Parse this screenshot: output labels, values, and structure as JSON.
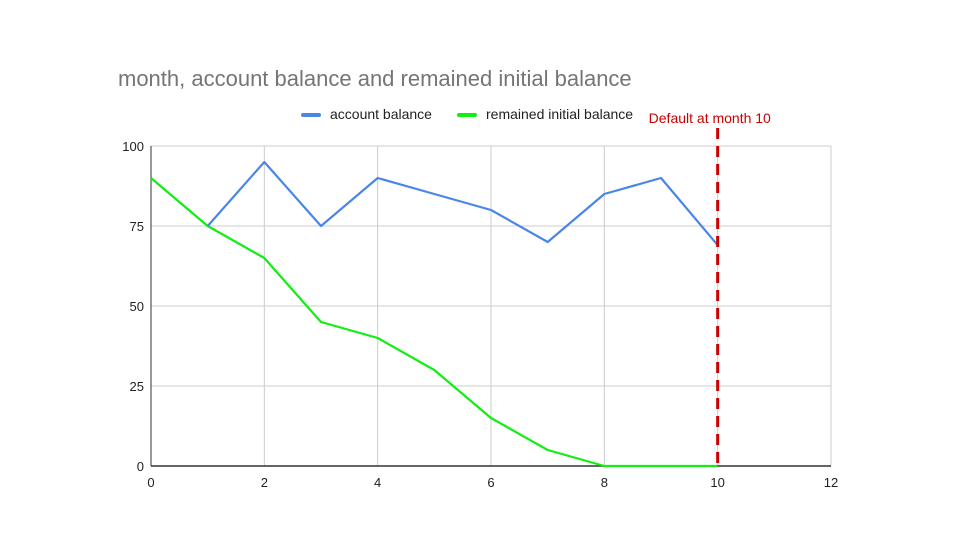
{
  "chart_data": {
    "type": "line",
    "title": "month, account balance and remained initial balance",
    "xlabel": "",
    "ylabel": "",
    "xlim": [
      0,
      12
    ],
    "ylim": [
      0,
      100
    ],
    "x_ticks": [
      0,
      2,
      4,
      6,
      8,
      10,
      12
    ],
    "y_ticks": [
      0,
      25,
      50,
      75,
      100
    ],
    "grid": true,
    "legend_position": "top",
    "series": [
      {
        "name": "account balance",
        "color": "#4a86e8",
        "x": [
          1,
          2,
          3,
          4,
          5,
          6,
          7,
          8,
          9,
          10
        ],
        "y": [
          75,
          95,
          75,
          90,
          85,
          80,
          70,
          85,
          90,
          69
        ]
      },
      {
        "name": "remained initial balance",
        "color": "#11ee11",
        "x": [
          0,
          1,
          2,
          3,
          4,
          5,
          6,
          7,
          8,
          9,
          10
        ],
        "y": [
          90,
          75,
          65,
          45,
          40,
          30,
          15,
          5,
          0,
          0,
          0
        ]
      }
    ],
    "annotations": [
      {
        "text": "Default at month 10",
        "x": 10,
        "color": "#cc0000",
        "style": "dashed-vertical-line"
      }
    ]
  }
}
